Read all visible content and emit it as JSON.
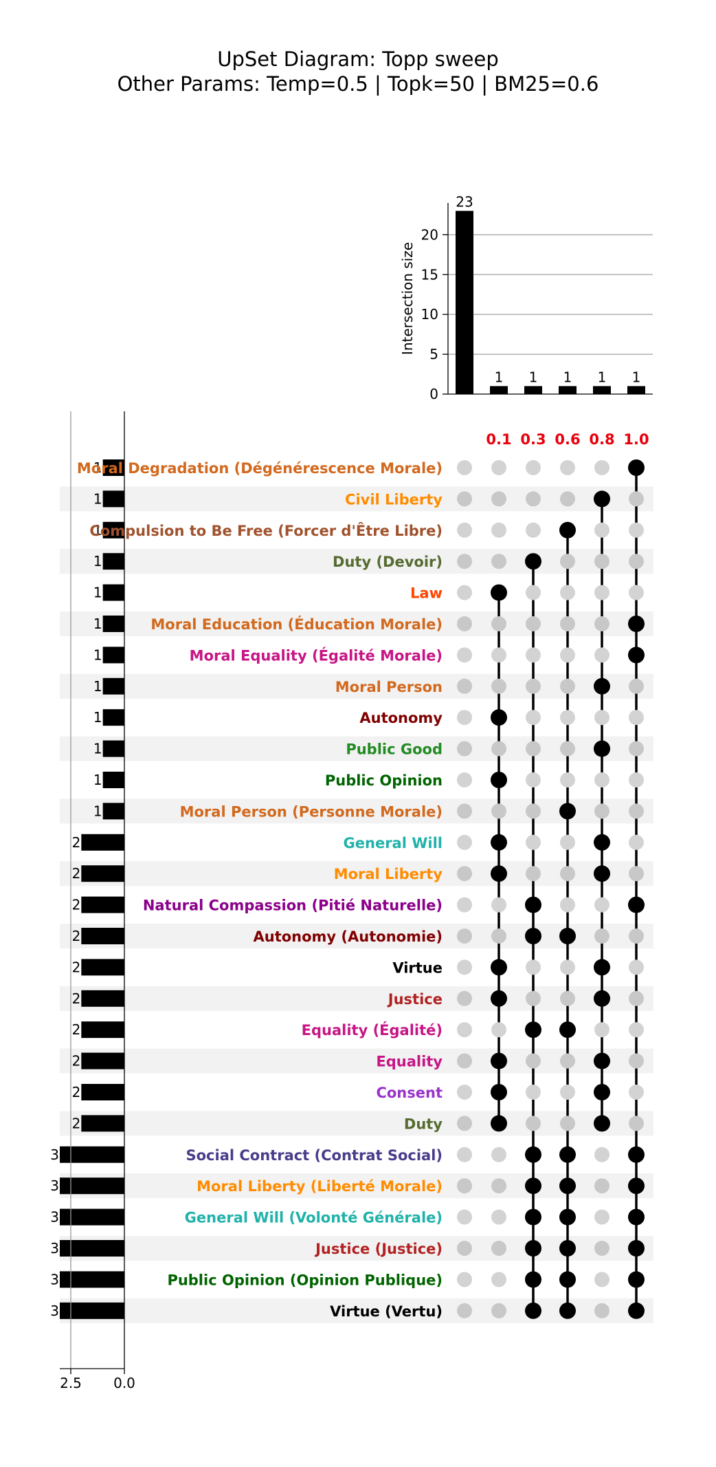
{
  "title": "UpSet Diagram: Topp sweep",
  "subtitle": "Other Params: Temp=0.5 | Topk=50 | BM25=0.6",
  "chart_data": {
    "type": "upset",
    "intersection_axis": {
      "label": "Intersection size",
      "ticks": [
        "0",
        "5",
        "10",
        "15",
        "20"
      ],
      "ylim": [
        0,
        24
      ]
    },
    "set_size_axis": {
      "ticks": [
        "2.5",
        "0.0"
      ],
      "xlim": [
        3.5,
        0
      ]
    },
    "sets": [
      "0.1",
      "0.3",
      "0.6",
      "0.8",
      "1.0"
    ],
    "set_color": "#e8000b",
    "intersections": [
      {
        "members": [],
        "size": 23,
        "label": "23"
      },
      {
        "members": [
          "0.1"
        ],
        "size": 1,
        "label": "1"
      },
      {
        "members": [
          "0.3"
        ],
        "size": 1,
        "label": "1"
      },
      {
        "members": [
          "0.6"
        ],
        "size": 1,
        "label": "1"
      },
      {
        "members": [
          "0.8"
        ],
        "size": 1,
        "label": "1"
      },
      {
        "members": [
          "1.0"
        ],
        "size": 1,
        "label": "1"
      }
    ],
    "elements": [
      {
        "name": "Moral Degradation (Dégénérescence Morale)",
        "size": 1,
        "size_label": "1",
        "color": "#d2691e",
        "sets": [
          "1.0"
        ]
      },
      {
        "name": "Civil Liberty",
        "size": 1,
        "size_label": "1",
        "color": "#ff8c00",
        "sets": [
          "0.8"
        ]
      },
      {
        "name": "Compulsion to Be Free (Forcer d'Être Libre)",
        "size": 1,
        "size_label": "1",
        "color": "#a0522d",
        "sets": [
          "0.6"
        ]
      },
      {
        "name": "Duty (Devoir)",
        "size": 1,
        "size_label": "1",
        "color": "#556b2f",
        "sets": [
          "0.3"
        ]
      },
      {
        "name": "Law",
        "size": 1,
        "size_label": "1",
        "color": "#ff4500",
        "sets": [
          "0.1"
        ]
      },
      {
        "name": "Moral Education (Éducation Morale)",
        "size": 1,
        "size_label": "1",
        "color": "#d2691e",
        "sets": [
          "1.0"
        ]
      },
      {
        "name": "Moral Equality (Égalité Morale)",
        "size": 1,
        "size_label": "1",
        "color": "#c71585",
        "sets": [
          "1.0"
        ]
      },
      {
        "name": "Moral Person",
        "size": 1,
        "size_label": "1",
        "color": "#d2691e",
        "sets": [
          "0.8"
        ]
      },
      {
        "name": "Autonomy",
        "size": 1,
        "size_label": "1",
        "color": "#800000",
        "sets": [
          "0.1"
        ]
      },
      {
        "name": "Public Good",
        "size": 1,
        "size_label": "1",
        "color": "#228b22",
        "sets": [
          "0.8"
        ]
      },
      {
        "name": "Public Opinion",
        "size": 1,
        "size_label": "1",
        "color": "#006400",
        "sets": [
          "0.1"
        ]
      },
      {
        "name": "Moral Person (Personne Morale)",
        "size": 1,
        "size_label": "1",
        "color": "#d2691e",
        "sets": [
          "0.6"
        ]
      },
      {
        "name": "General Will",
        "size": 2,
        "size_label": "2",
        "color": "#20b2aa",
        "sets": [
          "0.1",
          "0.8"
        ]
      },
      {
        "name": "Moral Liberty",
        "size": 2,
        "size_label": "2",
        "color": "#ff8c00",
        "sets": [
          "0.1",
          "0.8"
        ]
      },
      {
        "name": "Natural Compassion (Pitié Naturelle)",
        "size": 2,
        "size_label": "2",
        "color": "#8b008b",
        "sets": [
          "0.3",
          "1.0"
        ]
      },
      {
        "name": "Autonomy (Autonomie)",
        "size": 2,
        "size_label": "2",
        "color": "#800000",
        "sets": [
          "0.3",
          "0.6"
        ]
      },
      {
        "name": "Virtue",
        "size": 2,
        "size_label": "2",
        "color": "#000000",
        "sets": [
          "0.1",
          "0.8"
        ]
      },
      {
        "name": "Justice",
        "size": 2,
        "size_label": "2",
        "color": "#b22222",
        "sets": [
          "0.1",
          "0.8"
        ]
      },
      {
        "name": "Equality (Égalité)",
        "size": 2,
        "size_label": "2",
        "color": "#c71585",
        "sets": [
          "0.3",
          "0.6"
        ]
      },
      {
        "name": "Equality",
        "size": 2,
        "size_label": "2",
        "color": "#c71585",
        "sets": [
          "0.1",
          "0.8"
        ]
      },
      {
        "name": "Consent",
        "size": 2,
        "size_label": "2",
        "color": "#9932cc",
        "sets": [
          "0.1",
          "0.8"
        ]
      },
      {
        "name": "Duty",
        "size": 2,
        "size_label": "2",
        "color": "#556b2f",
        "sets": [
          "0.1",
          "0.8"
        ]
      },
      {
        "name": "Social Contract (Contrat Social)",
        "size": 3,
        "size_label": "3",
        "color": "#483d8b",
        "sets": [
          "0.3",
          "0.6",
          "1.0"
        ]
      },
      {
        "name": "Moral Liberty (Liberté Morale)",
        "size": 3,
        "size_label": "3",
        "color": "#ff8c00",
        "sets": [
          "0.3",
          "0.6",
          "1.0"
        ]
      },
      {
        "name": "General Will (Volonté Générale)",
        "size": 3,
        "size_label": "3",
        "color": "#20b2aa",
        "sets": [
          "0.3",
          "0.6",
          "1.0"
        ]
      },
      {
        "name": "Justice (Justice)",
        "size": 3,
        "size_label": "3",
        "color": "#b22222",
        "sets": [
          "0.3",
          "0.6",
          "1.0"
        ]
      },
      {
        "name": "Public Opinion (Opinion Publique)",
        "size": 3,
        "size_label": "3",
        "color": "#006400",
        "sets": [
          "0.3",
          "0.6",
          "1.0"
        ]
      },
      {
        "name": "Virtue (Vertu)",
        "size": 3,
        "size_label": "3",
        "color": "#000000",
        "sets": [
          "0.3",
          "0.6",
          "1.0"
        ]
      }
    ]
  }
}
